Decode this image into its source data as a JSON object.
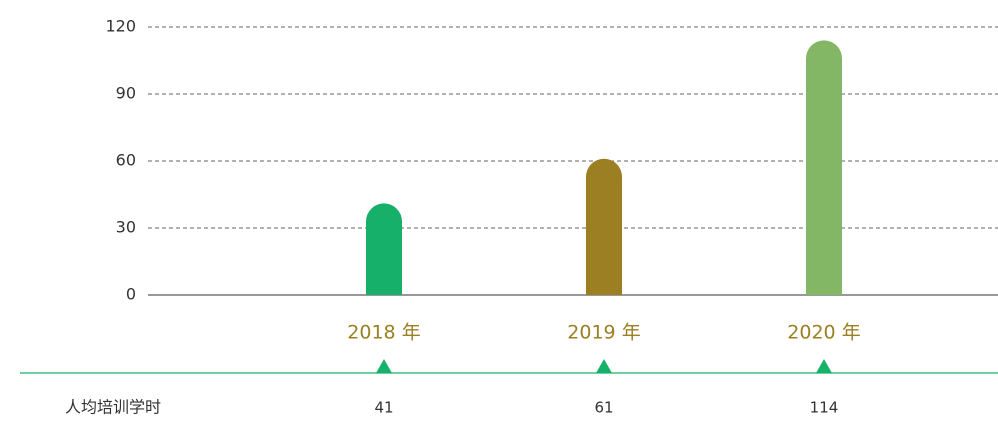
{
  "chart_data": {
    "type": "bar",
    "categories": [
      "2018 年",
      "2019 年",
      "2020 年"
    ],
    "values": [
      41,
      61,
      114
    ],
    "colors": [
      "#16b06a",
      "#9b7f22",
      "#84b765"
    ],
    "ylim": [
      0,
      120
    ],
    "yticks": [
      0,
      30,
      60,
      90,
      120
    ],
    "grid": true,
    "row_label": "人均培训学时"
  }
}
